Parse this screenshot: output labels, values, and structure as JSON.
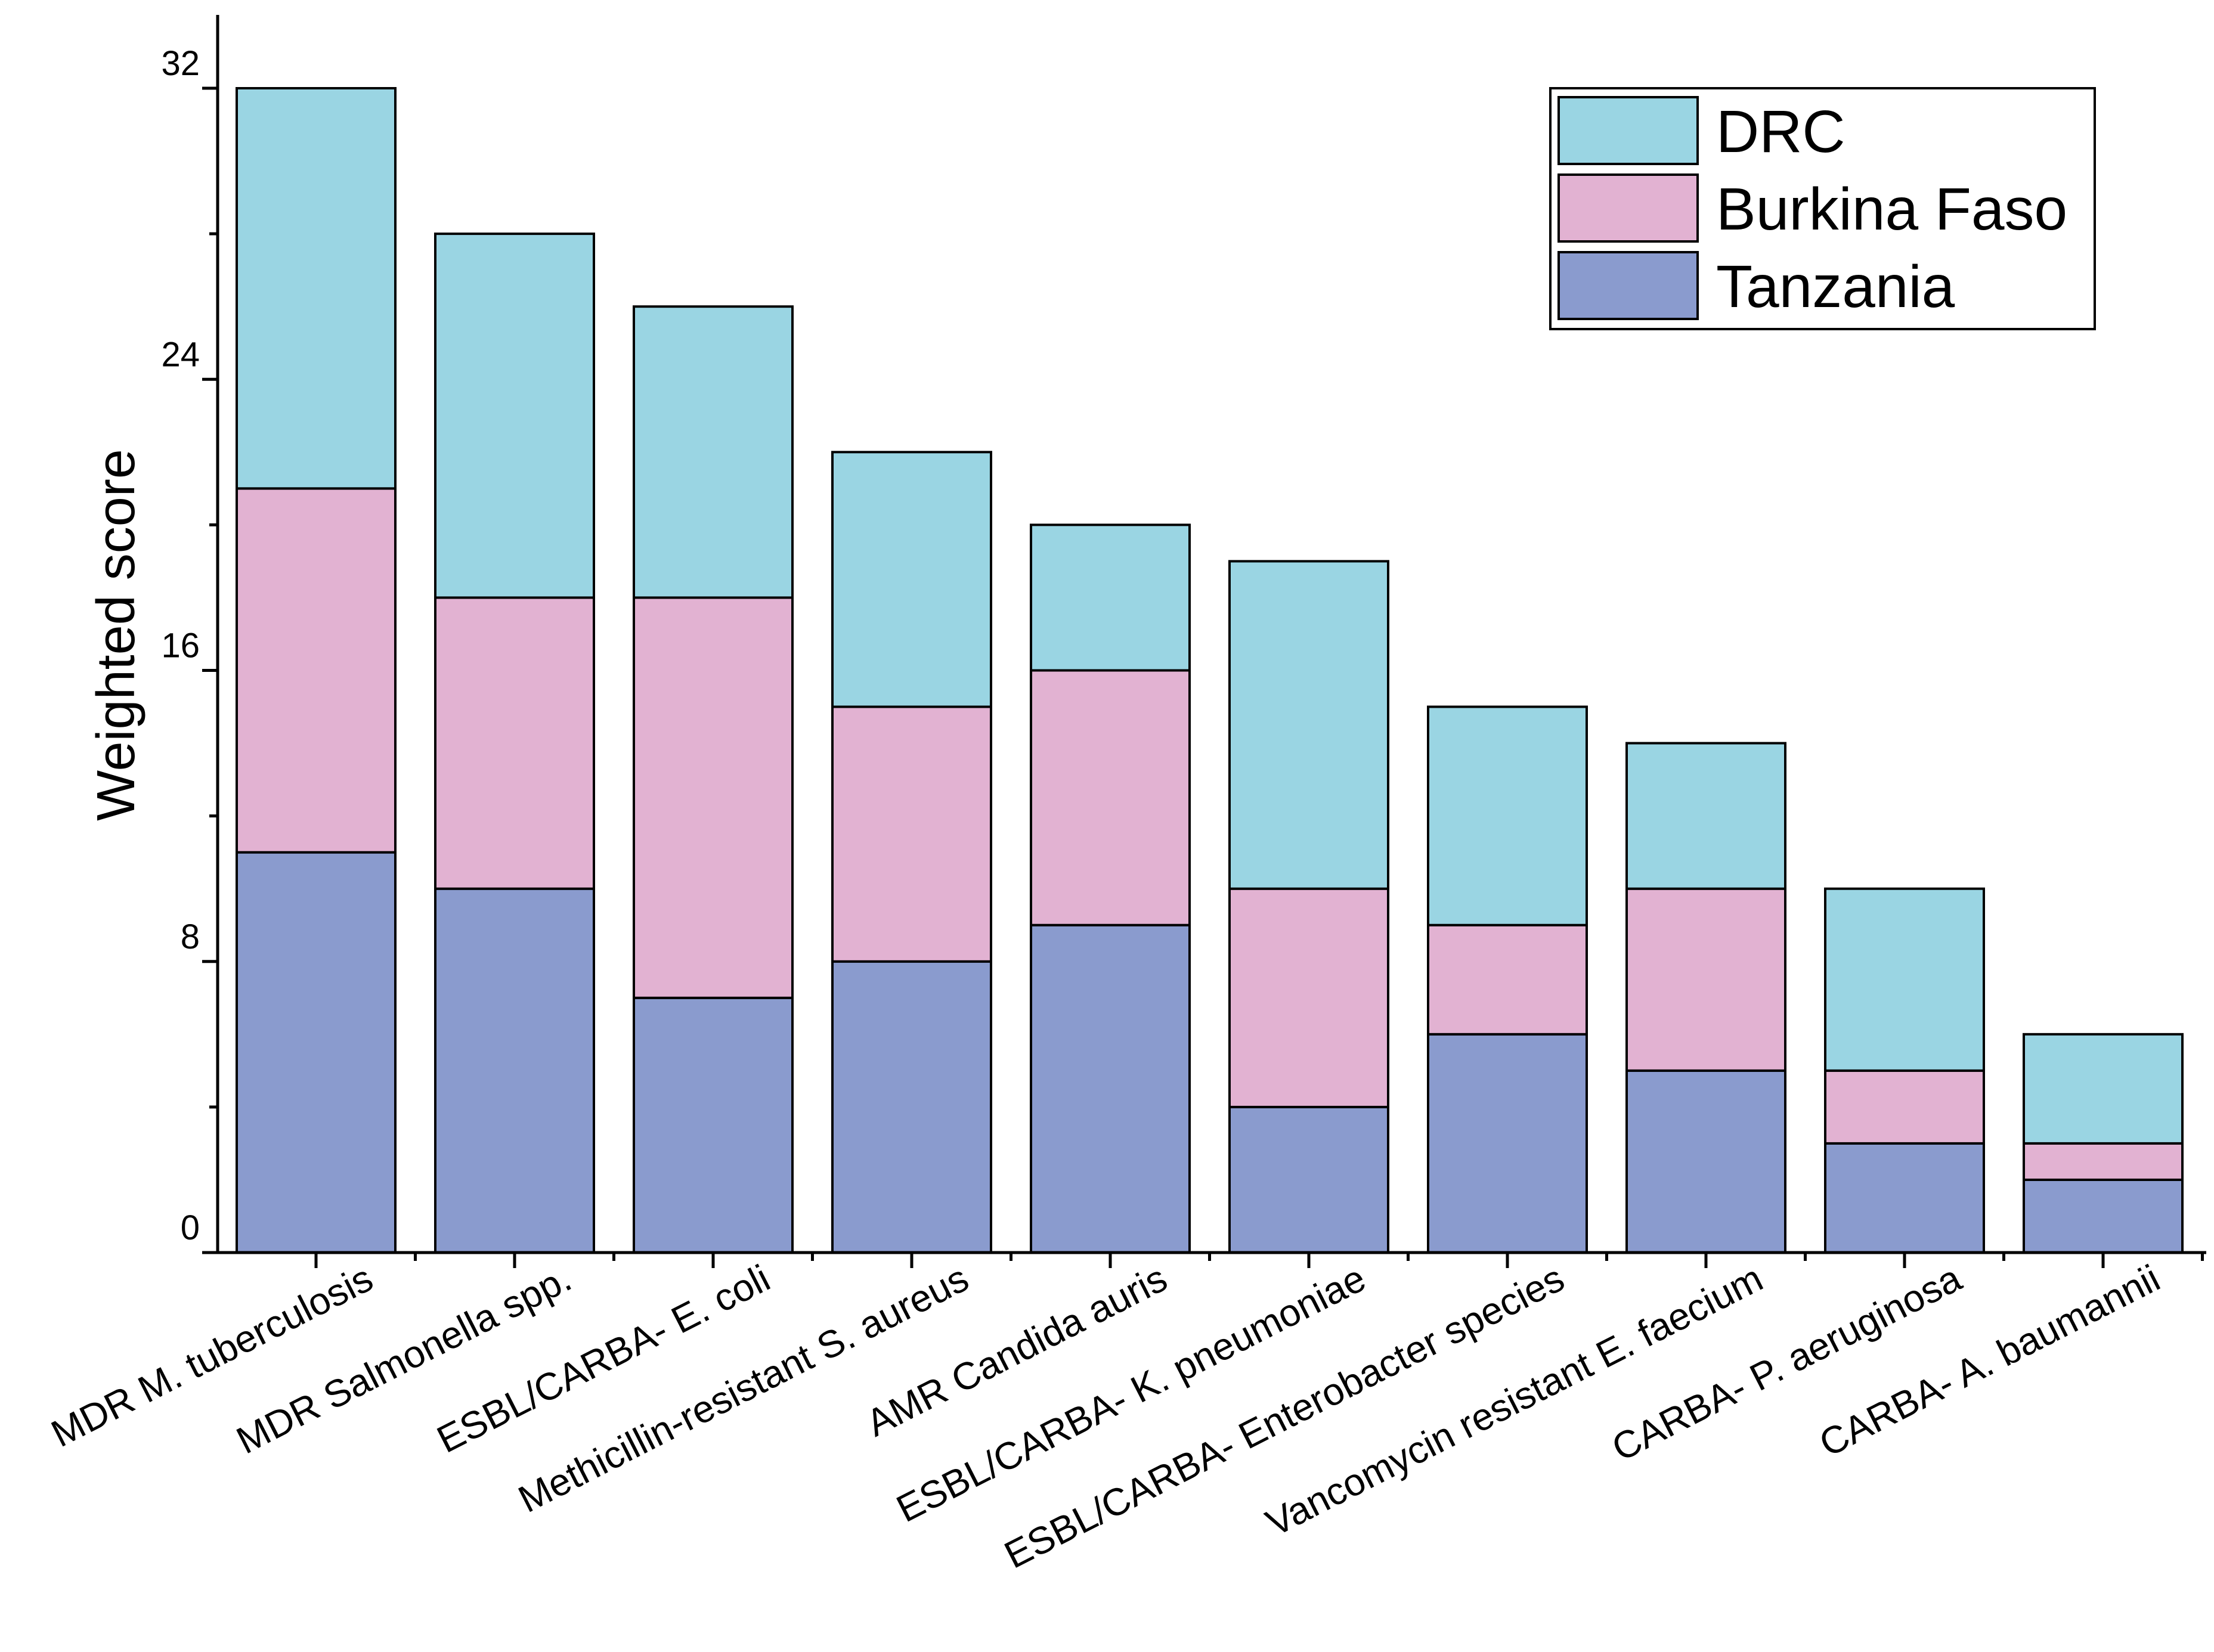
{
  "chart_data": {
    "type": "bar",
    "stacked": true,
    "ylabel": "Weighted score",
    "xlabel": "",
    "ylim": [
      0,
      32
    ],
    "yticks": [
      0,
      8,
      16,
      24,
      32
    ],
    "grid": false,
    "legend_position": "top-right",
    "categories": [
      "MDR M. tuberculosis",
      "MDR Salmonella spp.",
      "ESBL/CARBA- E. coli",
      "Methicillin-resistant S. aureus",
      "AMR Candida auris",
      "ESBL/CARBA- K. pneumoniae",
      "ESBL/CARBA- Enterobacter species",
      "Vancomycin resistant E. faecium",
      "CARBA- P. aeruginosa",
      "CARBA- A. baumannii"
    ],
    "series": [
      {
        "name": "Tanzania",
        "color": "#8a9bce",
        "values": [
          11,
          10,
          7,
          8,
          9,
          4,
          6,
          5,
          3,
          2
        ]
      },
      {
        "name": "Burkina Faso",
        "color": "#e2b2d2",
        "values": [
          10,
          8,
          11,
          7,
          7,
          6,
          3,
          5,
          2,
          1
        ]
      },
      {
        "name": "DRC",
        "color": "#9ad5e3",
        "values": [
          11,
          10,
          8,
          7,
          4,
          9,
          6,
          4,
          5,
          3
        ]
      }
    ]
  }
}
